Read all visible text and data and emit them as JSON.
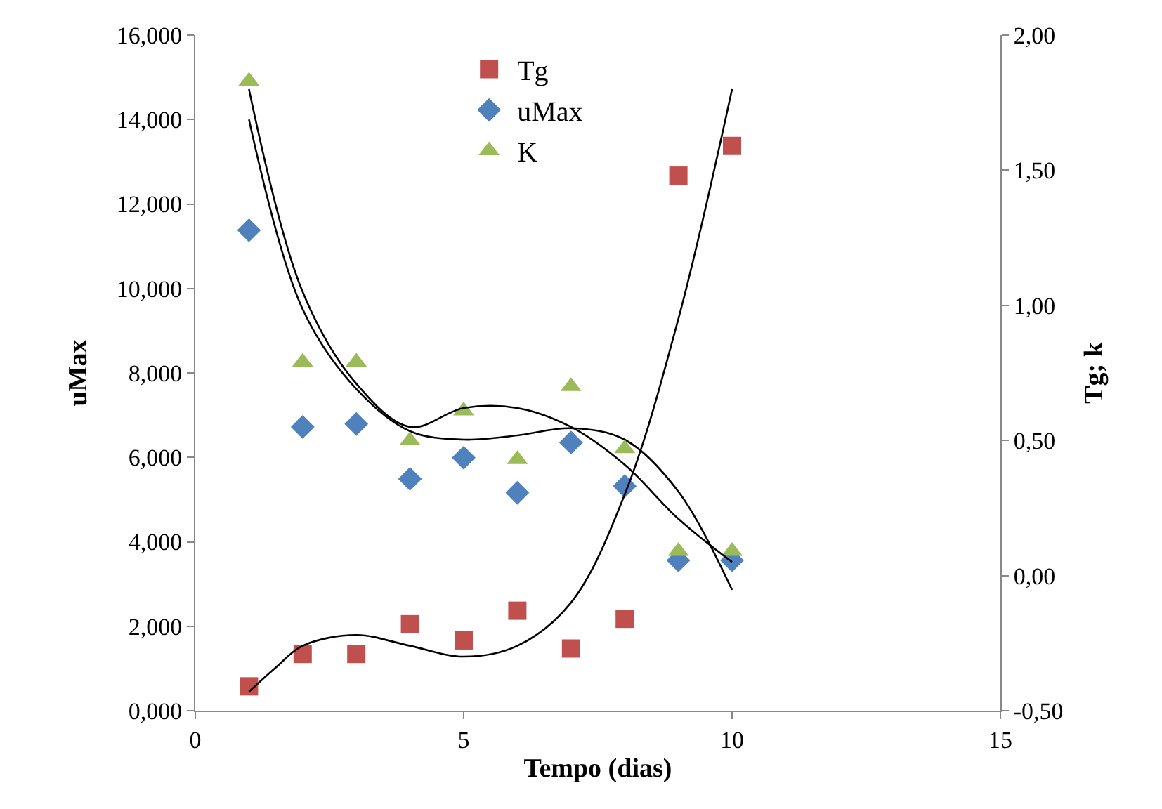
{
  "chart_data": {
    "type": "scatter",
    "xlabel": "Tempo (dias)",
    "ylabel": "uMax",
    "y2label": "Tg; k",
    "x": [
      1,
      2,
      3,
      4,
      5,
      6,
      7,
      8,
      9,
      10
    ],
    "series": [
      {
        "name": "Tg",
        "color": "#c0504d",
        "marker": "square",
        "axis": "y2",
        "values": [
          -0.41,
          -0.29,
          -0.29,
          -0.18,
          -0.24,
          -0.13,
          -0.27,
          -0.16,
          1.48,
          1.59
        ]
      },
      {
        "name": "uMax",
        "color": "#4f81bd",
        "marker": "diamond",
        "values": [
          11.38,
          6.72,
          6.79,
          5.49,
          5.99,
          5.16,
          6.35,
          5.32,
          3.56,
          3.56
        ]
      },
      {
        "name": "K",
        "color": "#9bbb59",
        "marker": "triangle",
        "axis": "y2",
        "values": [
          1.83,
          0.79,
          0.79,
          0.5,
          0.61,
          0.43,
          0.7,
          0.47,
          0.09,
          0.09
        ]
      },
      {
        "type": "line",
        "color": "#000000",
        "axis": "y2",
        "x": [
          1,
          1.5,
          2,
          3,
          4,
          5,
          6,
          7,
          8,
          9,
          10
        ],
        "values": [
          -0.43,
          -0.34,
          -0.26,
          -0.22,
          -0.26,
          -0.3,
          -0.26,
          -0.1,
          0.3,
          0.95,
          1.8
        ]
      },
      {
        "type": "line",
        "color": "#000000",
        "axis": "y2",
        "x": [
          1,
          2,
          3,
          4,
          5,
          6,
          7,
          8,
          9,
          10
        ],
        "values": [
          1.8,
          1.05,
          0.71,
          0.55,
          0.62,
          0.62,
          0.55,
          0.41,
          0.21,
          0.05
        ]
      },
      {
        "type": "line",
        "color": "#000000",
        "x": [
          1,
          2,
          3,
          4,
          5,
          6,
          7,
          8,
          9,
          10
        ],
        "values": [
          14.0,
          9.51,
          7.62,
          6.62,
          6.42,
          6.52,
          6.69,
          6.42,
          5.19,
          2.86
        ]
      }
    ],
    "xlim": [
      0,
      15
    ],
    "xticks": [
      0,
      5,
      10,
      15
    ],
    "ylim": [
      0,
      16
    ],
    "yticks": [
      {
        "value": 0,
        "label": "0,000"
      },
      {
        "value": 2,
        "label": "2,000"
      },
      {
        "value": 4,
        "label": "4,000"
      },
      {
        "value": 6,
        "label": "6,000"
      },
      {
        "value": 8,
        "label": "8,000"
      },
      {
        "value": 10,
        "label": "10,000"
      },
      {
        "value": 12,
        "label": "12,000"
      },
      {
        "value": 14,
        "label": "14,000"
      },
      {
        "value": 16,
        "label": "16,000"
      }
    ],
    "y2lim": [
      -0.5,
      2
    ],
    "y2ticks": [
      {
        "value": -0.5,
        "label": "-0,50"
      },
      {
        "value": 0,
        "label": "0,00"
      },
      {
        "value": 0.5,
        "label": "0,50"
      },
      {
        "value": 1,
        "label": "1,00"
      },
      {
        "value": 1.5,
        "label": "1,50"
      },
      {
        "value": 2,
        "label": "2,00"
      }
    ],
    "legend": "top"
  }
}
